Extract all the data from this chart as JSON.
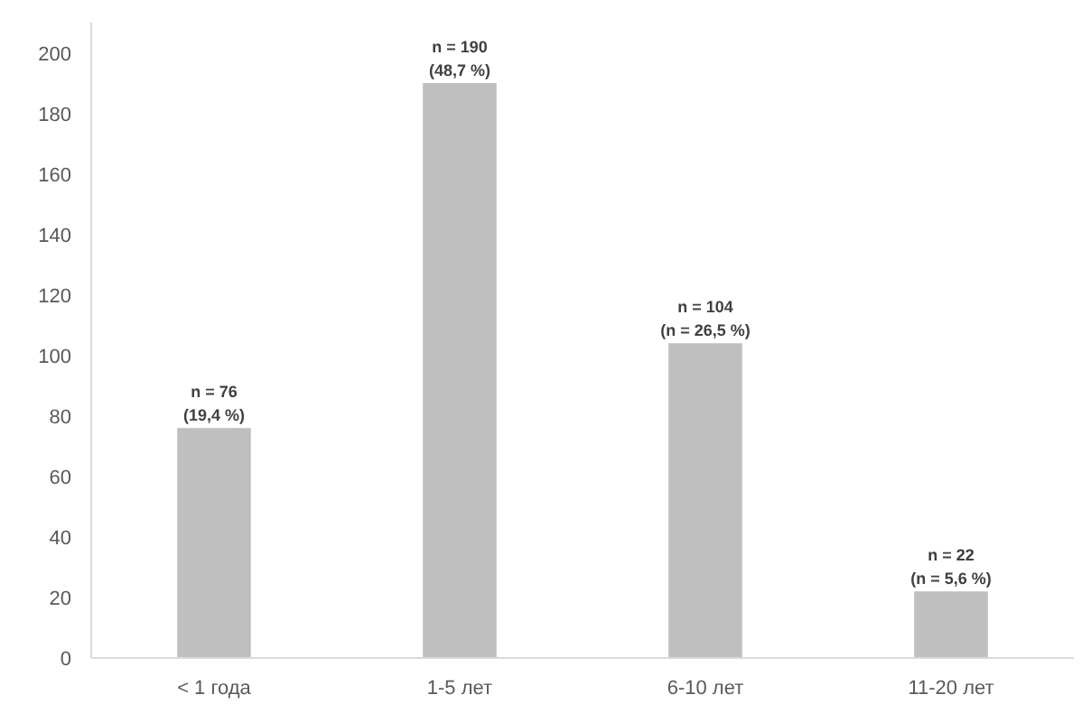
{
  "chart_data": {
    "type": "bar",
    "categories": [
      "< 1 года",
      "1-5 лет",
      "6-10 лет",
      "11-20 лет"
    ],
    "values": [
      76,
      190,
      104,
      22
    ],
    "color": "#bfbfbf",
    "value_labels": [
      "n = 76\n(19,4 %)",
      "n = 190\n(48,7 %)",
      "n = 104\n(n = 26,5 %)",
      "n = 22\n(n = 5,6 %)"
    ],
    "ylim": [
      0,
      210
    ],
    "yticks": [
      0,
      20,
      40,
      60,
      80,
      100,
      120,
      140,
      160,
      180,
      200
    ],
    "grid": false
  }
}
